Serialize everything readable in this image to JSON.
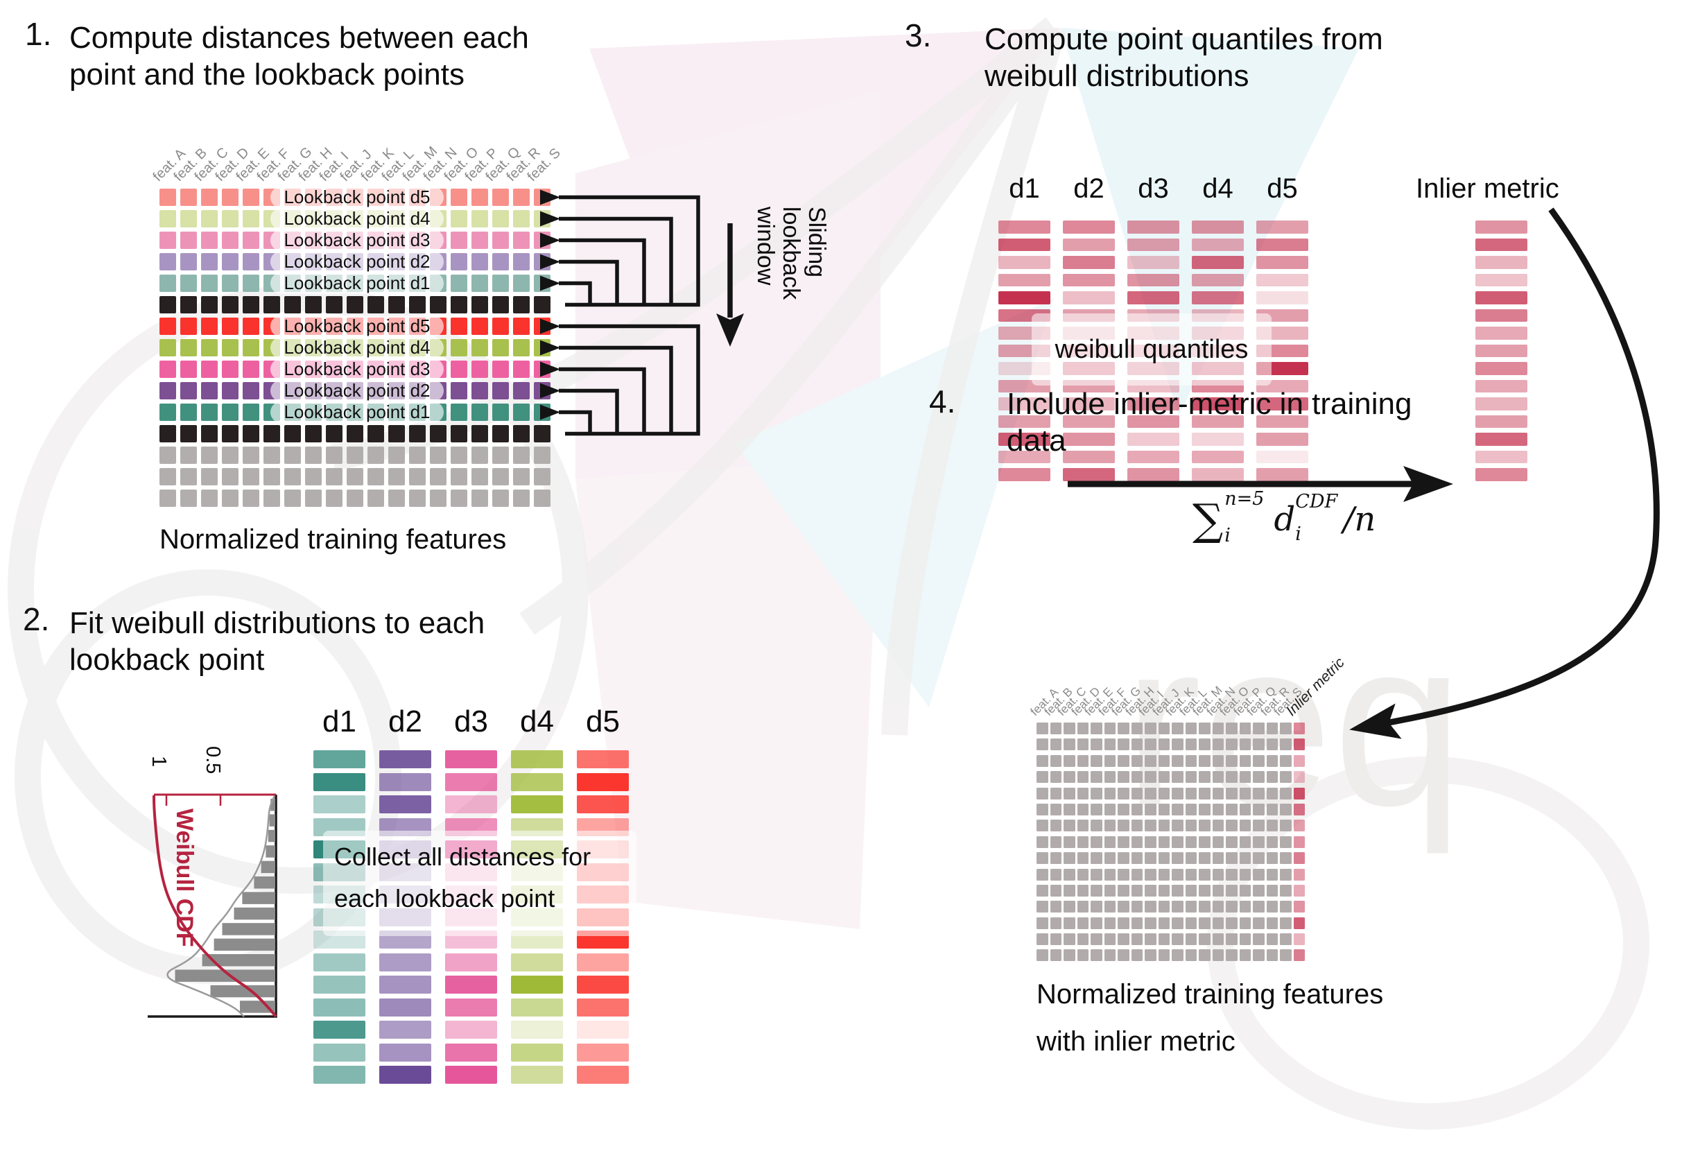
{
  "steps": {
    "s1": {
      "num": "1.",
      "title1": "Compute distances between each",
      "title2": "point and the lookback points",
      "caption": "Normalized training features",
      "sliding": [
        "Sliding",
        "lookback",
        "window"
      ]
    },
    "s2": {
      "num": "2.",
      "title1": "Fit weibull distributions to each",
      "title2": "lookback point",
      "note1": "Collect all distances for",
      "note2": "each lookback point",
      "cdf_label": "Weibull CDF",
      "tick1": "1",
      "tick05": "0.5"
    },
    "s3": {
      "num": "3.",
      "title1": "Compute point quantiles from",
      "title2": "weibull distributions",
      "pill": "weibull quantiles",
      "inlier": "Inlier metric"
    },
    "s4": {
      "num": "4.",
      "title1": "Include inlier-metric in training",
      "title2": "data",
      "caption1": "Normalized training features",
      "caption2": "with inlier metric",
      "inlier": "Inlier metric"
    }
  },
  "formula": {
    "sum": "∑",
    "sup": "n=5",
    "sub": "i",
    "d": "d",
    "dsup": "CDF",
    "dsub": "i",
    "div": "/n"
  },
  "features": [
    "feat. A",
    "feat. B",
    "feat. C",
    "feat. D",
    "feat. E",
    "feat. F",
    "feat. G",
    "feat. H",
    "feat. I",
    "feat. J",
    "feat. K",
    "feat. L",
    "feat. M",
    "feat. N",
    "feat. O",
    "feat. P",
    "feat. Q",
    "feat. R",
    "feat. S"
  ],
  "d_labels": [
    "d1",
    "d2",
    "d3",
    "d4",
    "d5"
  ],
  "lookback_labels": [
    "Lookback point d5",
    "Lookback point d4",
    "Lookback point d3",
    "Lookback point d2",
    "Lookback point d1"
  ],
  "colors": {
    "black_row": "#272020",
    "gray_row": "#b3aeae",
    "gray_cell": "#b1acab",
    "quantile_base": "#c22746",
    "accent_red": "#b5233f",
    "arrow": "#141414"
  },
  "step1_rows": [
    {
      "color": "#f8908a",
      "label": "Lookback point d5"
    },
    {
      "color": "#d8e1a6",
      "label": "Lookback point d4"
    },
    {
      "color": "#ee93b8",
      "label": "Lookback point d3"
    },
    {
      "color": "#a894c2",
      "label": "Lookback point d2"
    },
    {
      "color": "#8db7ae",
      "label": "Lookback point d1"
    },
    {
      "color": "#272020"
    },
    {
      "color": "#fa332d",
      "label": "Lookback point d5"
    },
    {
      "color": "#a8c14e",
      "label": "Lookback point d4"
    },
    {
      "color": "#ee61a1",
      "label": "Lookback point d3"
    },
    {
      "color": "#7d4f93",
      "label": "Lookback point d2"
    },
    {
      "color": "#41917f",
      "label": "Lookback point d1"
    },
    {
      "color": "#272020"
    },
    {
      "color": "#b3aeae"
    },
    {
      "color": "#b3aeae"
    },
    {
      "color": "#b3aeae"
    }
  ],
  "step2_columns": [
    {
      "label": "d1",
      "color": "#2e877a",
      "alphas": [
        0.75,
        0.95,
        0.4,
        0.45,
        1.0,
        0.55,
        0.3,
        0.35,
        0.22,
        0.45,
        0.5,
        0.55,
        0.85,
        0.5,
        0.6
      ]
    },
    {
      "label": "d2",
      "color": "#6a4b97",
      "alphas": [
        0.9,
        0.65,
        0.88,
        0.6,
        0.45,
        0.35,
        0.3,
        0.4,
        0.5,
        0.55,
        0.6,
        0.65,
        0.55,
        0.6,
        1.0
      ]
    },
    {
      "label": "d3",
      "color": "#e2458f",
      "alphas": [
        0.85,
        0.7,
        0.4,
        0.6,
        1.0,
        0.3,
        0.25,
        0.3,
        0.35,
        0.5,
        0.85,
        0.7,
        0.4,
        0.75,
        0.9
      ]
    },
    {
      "label": "d4",
      "color": "#9fba37",
      "alphas": [
        0.8,
        0.75,
        0.95,
        0.5,
        0.8,
        0.25,
        0.35,
        0.3,
        0.28,
        0.5,
        1.0,
        0.55,
        0.2,
        0.6,
        0.5
      ]
    },
    {
      "label": "d5",
      "color": "#fb362f",
      "alphas": [
        0.7,
        1.0,
        0.85,
        0.45,
        0.3,
        0.5,
        0.55,
        0.65,
        1.0,
        0.45,
        0.9,
        0.7,
        0.12,
        0.5,
        0.65
      ]
    }
  ],
  "step3_columns": [
    {
      "label": "d1",
      "alphas": [
        0.55,
        0.75,
        0.35,
        0.45,
        0.95,
        0.65,
        0.4,
        0.45,
        0.18,
        0.45,
        0.3,
        0.45,
        0.75,
        0.4,
        0.55
      ]
    },
    {
      "label": "d2",
      "alphas": [
        0.55,
        0.45,
        0.6,
        0.5,
        0.3,
        0.45,
        0.25,
        0.35,
        0.55,
        0.45,
        0.35,
        0.45,
        0.5,
        0.45,
        0.7
      ]
    },
    {
      "label": "d3",
      "alphas": [
        0.5,
        0.45,
        0.3,
        0.5,
        0.7,
        0.4,
        0.3,
        0.35,
        0.45,
        0.3,
        0.55,
        0.5,
        0.25,
        0.4,
        0.5
      ]
    },
    {
      "label": "d4",
      "alphas": [
        0.5,
        0.4,
        0.7,
        0.45,
        0.65,
        0.35,
        0.4,
        0.3,
        0.6,
        0.55,
        0.8,
        0.45,
        0.2,
        0.4,
        0.35
      ]
    },
    {
      "label": "d5",
      "alphas": [
        0.45,
        0.6,
        0.5,
        0.25,
        0.15,
        0.45,
        0.35,
        0.55,
        0.95,
        0.4,
        0.7,
        0.45,
        0.45,
        0.1,
        0.45
      ]
    }
  ],
  "step3_inlier_alphas": [
    0.5,
    0.7,
    0.35,
    0.28,
    0.75,
    0.6,
    0.4,
    0.45,
    0.55,
    0.4,
    0.35,
    0.45,
    0.7,
    0.3,
    0.55
  ],
  "step4_grid": {
    "rows": 15,
    "feature_cols": 19,
    "inlier_alphas": [
      0.55,
      0.75,
      0.4,
      0.3,
      0.8,
      0.65,
      0.45,
      0.5,
      0.6,
      0.45,
      0.4,
      0.5,
      0.75,
      0.35,
      0.6
    ]
  },
  "histogram": {
    "type": "bar",
    "orientation": "rotated-90",
    "values": [
      0.04,
      0.05,
      0.06,
      0.08,
      0.12,
      0.18,
      0.28,
      0.35,
      0.45,
      0.52,
      0.62,
      0.85,
      0.55,
      0.3
    ],
    "axis_ticks": [
      "1",
      "0.5"
    ],
    "curve_label": "Weibull CDF"
  }
}
